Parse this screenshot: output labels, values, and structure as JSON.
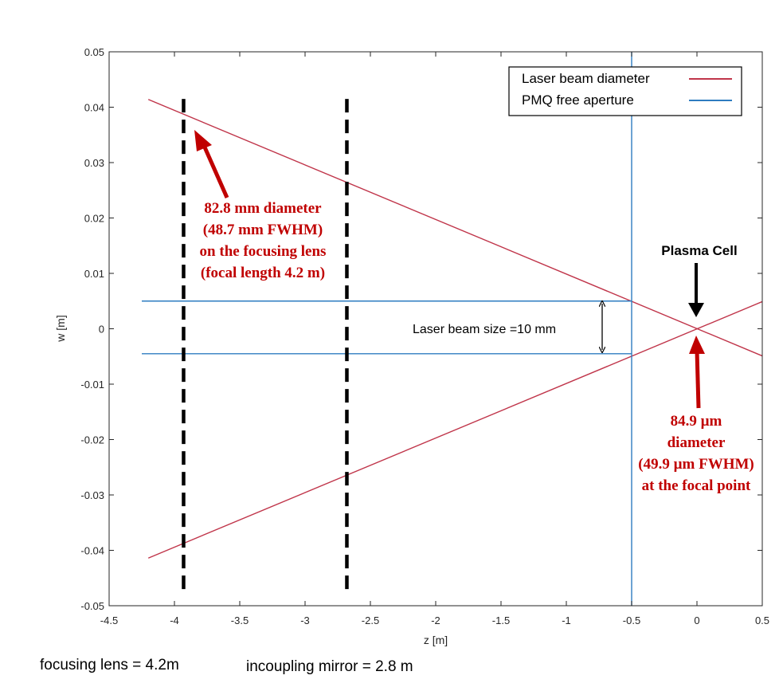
{
  "chart_data": {
    "type": "line",
    "xlabel": "z [m]",
    "ylabel": "w [m]",
    "xlim": [
      -4.5,
      0.5
    ],
    "ylim": [
      -0.05,
      0.05
    ],
    "xticks": [
      -4.5,
      -4,
      -3.5,
      -3,
      -2.5,
      -2,
      -1.5,
      -1,
      -0.5,
      0,
      0.5
    ],
    "yticks": [
      -0.05,
      -0.04,
      -0.03,
      -0.02,
      -0.01,
      0,
      0.01,
      0.02,
      0.03,
      0.04,
      0.05
    ],
    "grid": false,
    "legend_position": "top-right",
    "series": [
      {
        "name": "Laser beam diameter",
        "color": "#c0354a",
        "x": [
          -4.2,
          0.5
        ],
        "y": [
          0.0414,
          -0.0049
        ]
      },
      {
        "name": "",
        "color": "#c0354a",
        "x": [
          -4.2,
          0.5
        ],
        "y": [
          -0.0414,
          0.0049
        ]
      },
      {
        "name": "PMQ free aperture",
        "color": "#2e7cc0",
        "x": [
          -0.5,
          -0.5
        ],
        "y": [
          -0.05,
          0.05
        ]
      },
      {
        "name": "",
        "color": "#2e7cc0",
        "x": [
          -4.25,
          -0.5
        ],
        "y": [
          0.005,
          0.005
        ]
      },
      {
        "name": "",
        "color": "#2e7cc0",
        "x": [
          -4.25,
          -0.5
        ],
        "y": [
          -0.0045,
          -0.0045
        ]
      }
    ],
    "markers": [
      {
        "x": -3.93,
        "y_range": [
          -0.047,
          0.042
        ],
        "color": "#000000"
      },
      {
        "x": -2.68,
        "y_range": [
          -0.047,
          0.042
        ],
        "color": "#000000"
      }
    ],
    "annotations": {
      "lens_note": [
        "82.8 mm diameter",
        "(48.7 mm FWHM)",
        "on the focusing lens",
        "(focal length 4.2 m)"
      ],
      "plasma_cell": "Plasma Cell",
      "beam_size": "Laser beam size =10 mm",
      "focal_note": [
        "84.9 µm",
        "diameter",
        "(49.9 µm FWHM)",
        "at the focal point"
      ]
    }
  },
  "footer": {
    "left": "focusing lens = 4.2m",
    "right": "incoupling mirror = 2.8 m"
  }
}
